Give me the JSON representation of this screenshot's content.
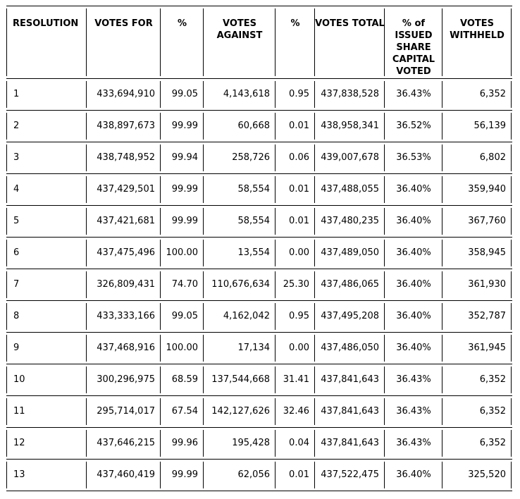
{
  "colors": {
    "background": "#ffffff",
    "border": "#000000",
    "text": "#000000"
  },
  "table": {
    "columns": [
      {
        "label": "RESOLUTION"
      },
      {
        "label": "VOTES FOR"
      },
      {
        "label": "%"
      },
      {
        "label": "VOTES AGAINST"
      },
      {
        "label": "%"
      },
      {
        "label": "VOTES TOTAL"
      },
      {
        "label": "% of ISSUED SHARE CAPITAL VOTED"
      },
      {
        "label": "VOTES WITHHELD"
      }
    ],
    "rows": [
      [
        "1",
        "433,694,910",
        "99.05",
        "4,143,618",
        "0.95",
        "437,838,528",
        "36.43%",
        "6,352"
      ],
      [
        "2",
        "438,897,673",
        "99.99",
        "60,668",
        "0.01",
        "438,958,341",
        "36.52%",
        "56,139"
      ],
      [
        "3",
        "438,748,952",
        "99.94",
        "258,726",
        "0.06",
        "439,007,678",
        "36.53%",
        "6,802"
      ],
      [
        "4",
        "437,429,501",
        "99.99",
        "58,554",
        "0.01",
        "437,488,055",
        "36.40%",
        "359,940"
      ],
      [
        "5",
        "437,421,681",
        "99.99",
        "58,554",
        "0.01",
        "437,480,235",
        "36.40%",
        "367,760"
      ],
      [
        "6",
        "437,475,496",
        "100.00",
        "13,554",
        "0.00",
        "437,489,050",
        "36.40%",
        "358,945"
      ],
      [
        "7",
        "326,809,431",
        "74.70",
        "110,676,634",
        "25.30",
        "437,486,065",
        "36.40%",
        "361,930"
      ],
      [
        "8",
        "433,333,166",
        "99.05",
        "4,162,042",
        "0.95",
        "437,495,208",
        "36.40%",
        "352,787"
      ],
      [
        "9",
        "437,468,916",
        "100.00",
        "17,134",
        "0.00",
        "437,486,050",
        "36.40%",
        "361,945"
      ],
      [
        "10",
        "300,296,975",
        "68.59",
        "137,544,668",
        "31.41",
        "437,841,643",
        "36.43%",
        "6,352"
      ],
      [
        "11",
        "295,714,017",
        "67.54",
        "142,127,626",
        "32.46",
        "437,841,643",
        "36.43%",
        "6,352"
      ],
      [
        "12",
        "437,646,215",
        "99.96",
        "195,428",
        "0.04",
        "437,841,643",
        "36.43%",
        "6,352"
      ],
      [
        "13",
        "437,460,419",
        "99.99",
        "62,056",
        "0.01",
        "437,522,475",
        "36.40%",
        "325,520"
      ]
    ]
  }
}
